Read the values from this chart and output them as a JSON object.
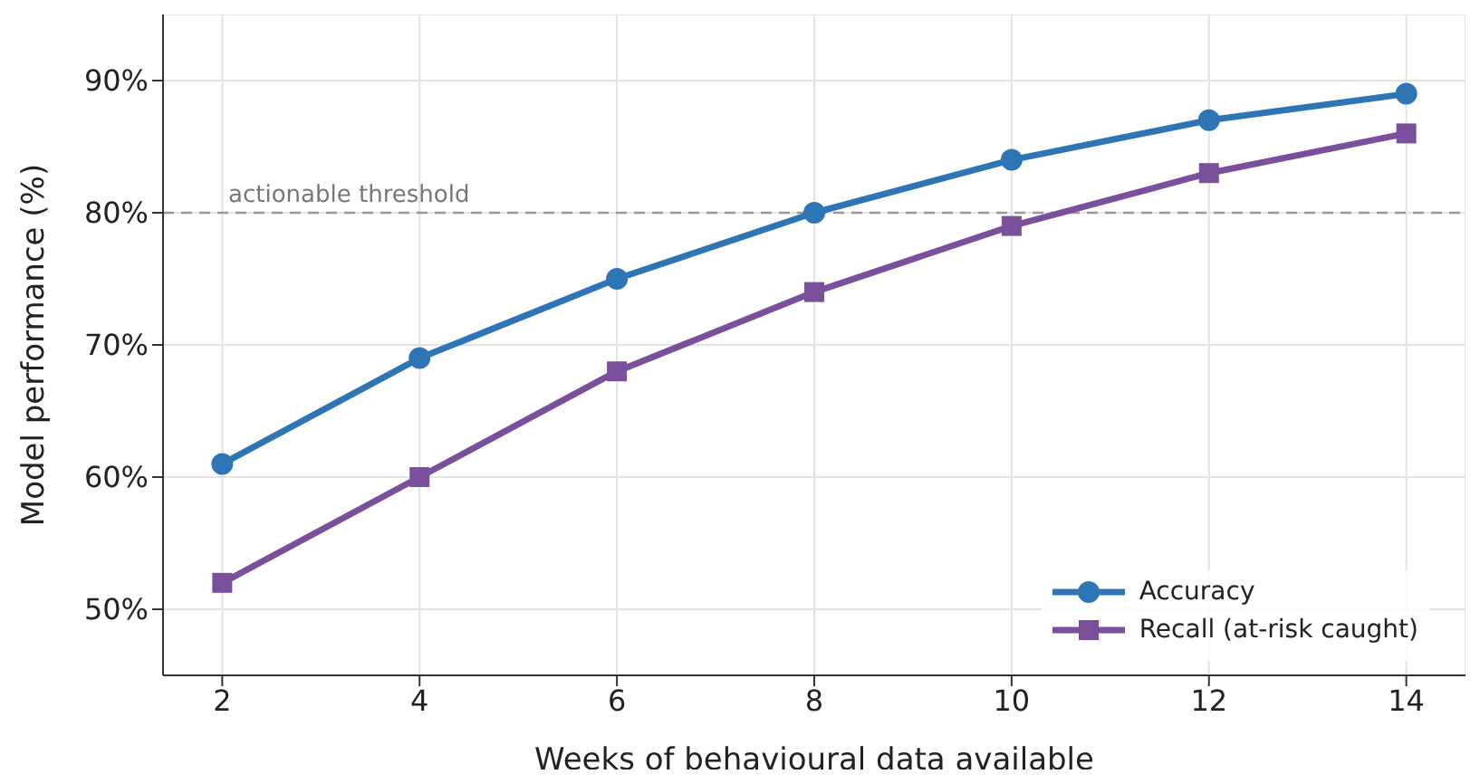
{
  "chart_data": {
    "type": "line",
    "xlabel": "Weeks of behavioural data available",
    "ylabel": "Model performance (%)",
    "x": [
      2,
      4,
      6,
      8,
      10,
      12,
      14
    ],
    "series": [
      {
        "name": "Accuracy",
        "color": "#2e75b6",
        "marker": "circle",
        "values": [
          61,
          69,
          75,
          80,
          84,
          87,
          89
        ]
      },
      {
        "name": "Recall (at-risk caught)",
        "color": "#7a4f9b",
        "marker": "square",
        "values": [
          52,
          60,
          68,
          74,
          79,
          83,
          86
        ]
      }
    ],
    "xlim": [
      1.4,
      14.6
    ],
    "xticks": [
      2,
      4,
      6,
      8,
      10,
      12,
      14
    ],
    "ylim": [
      45,
      95
    ],
    "yticks": [
      {
        "value": 50,
        "label": "50%"
      },
      {
        "value": 60,
        "label": "60%"
      },
      {
        "value": 70,
        "label": "70%"
      },
      {
        "value": 80,
        "label": "80%"
      },
      {
        "value": 90,
        "label": "90%"
      }
    ],
    "ref_lines": [
      {
        "axis": "y",
        "value": 80,
        "label": "actionable threshold",
        "color": "#999999",
        "line_style": "dashed"
      }
    ],
    "grid": true,
    "legend": "bottom right",
    "line_style": "solid"
  }
}
